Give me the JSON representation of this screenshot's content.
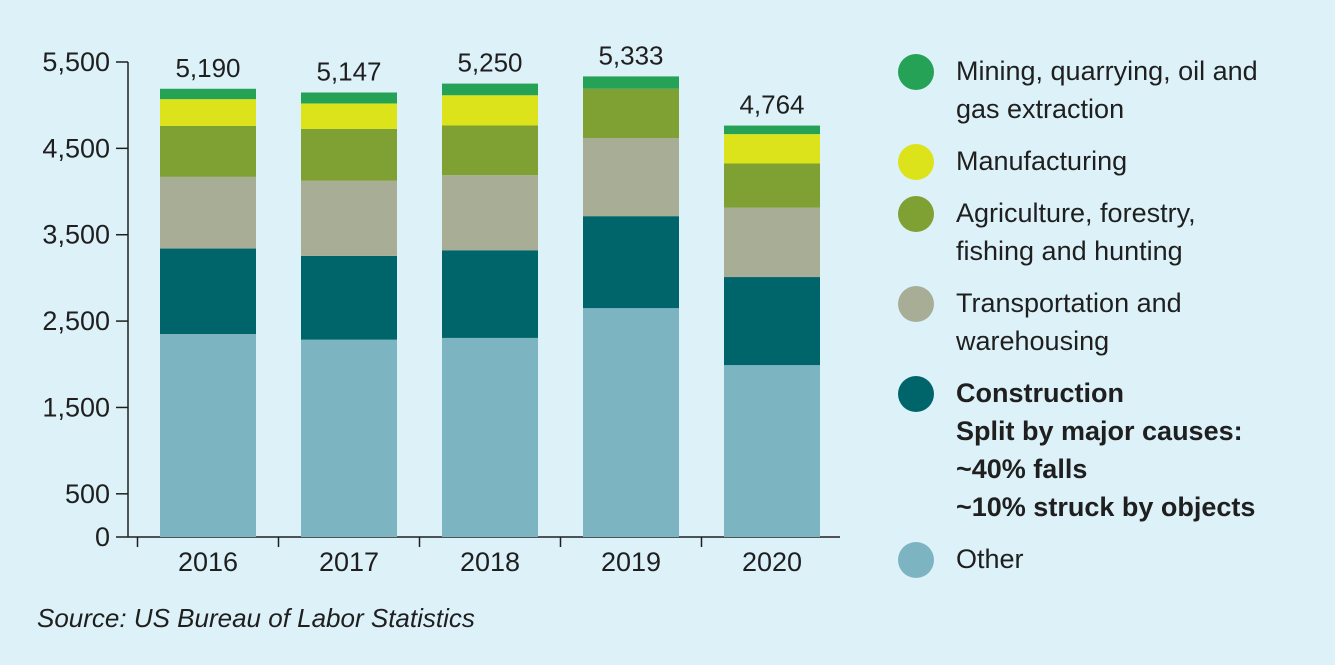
{
  "chart_data": {
    "type": "bar",
    "stacked": true,
    "categories": [
      "2016",
      "2017",
      "2018",
      "2019",
      "2020"
    ],
    "totals": [
      "5,190",
      "5,147",
      "5,250",
      "5,333",
      "4,764"
    ],
    "series": [
      {
        "name": "Other",
        "color": "#7db4c1",
        "values": [
          2350,
          2285,
          2305,
          2650,
          1990
        ]
      },
      {
        "name": "Construction",
        "color": "#00656a",
        "values": [
          990,
          970,
          1015,
          1065,
          1020
        ]
      },
      {
        "name": "Transportation and warehousing",
        "color": "#a8ae96",
        "values": [
          830,
          870,
          870,
          905,
          805
        ]
      },
      {
        "name": "Agriculture, forestry, fishing and hunting",
        "color": "#7fa032",
        "values": [
          590,
          600,
          575,
          570,
          510
        ]
      },
      {
        "name": "Manufacturing",
        "color": "#dce31a",
        "values": [
          310,
          295,
          350,
          0,
          340
        ]
      },
      {
        "name": "Mining, quarrying, oil and gas extraction",
        "color": "#25a256",
        "values": [
          120,
          127,
          135,
          143,
          99
        ]
      }
    ],
    "yticks": [
      "5,500",
      "4,500",
      "3,500",
      "2,500",
      "1,500",
      "500",
      "0"
    ],
    "ytick_values": [
      5500,
      4500,
      3500,
      2500,
      1500,
      500,
      0
    ],
    "ylim": [
      0,
      5500
    ],
    "grid": false,
    "legend_position": "right"
  },
  "legend": [
    {
      "lines": [
        "Mining, quarrying, oil and",
        "gas extraction"
      ],
      "color": "#25a256",
      "bold": false
    },
    {
      "lines": [
        "Manufacturing"
      ],
      "color": "#dce31a",
      "bold": false
    },
    {
      "lines": [
        "Agriculture, forestry,",
        "fishing and hunting"
      ],
      "color": "#7fa032",
      "bold": false
    },
    {
      "lines": [
        "Transportation and",
        "warehousing"
      ],
      "color": "#a8ae96",
      "bold": false
    },
    {
      "lines": [
        "Construction",
        "Split by major causes:",
        "~40% falls",
        "~10% struck by objects"
      ],
      "color": "#00656a",
      "bold": true
    },
    {
      "lines": [
        "Other"
      ],
      "color": "#7db4c1",
      "bold": false
    }
  ],
  "source": "Source: US Bureau of Labor Statistics"
}
